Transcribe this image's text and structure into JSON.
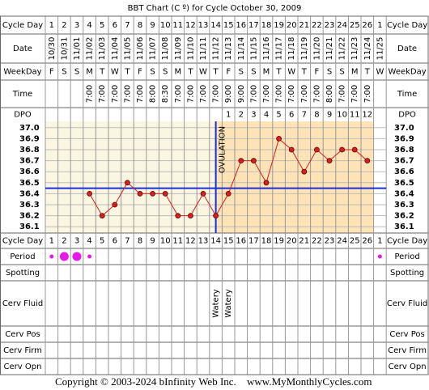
{
  "chart_data": {
    "type": "line",
    "title": "BBT Chart (C º) for Cycle October 30, 2009",
    "categories": [
      1,
      2,
      3,
      4,
      5,
      6,
      7,
      8,
      9,
      10,
      11,
      12,
      13,
      14,
      15,
      16,
      17,
      18,
      19,
      20,
      21,
      22,
      23,
      24,
      25,
      26,
      1
    ],
    "dates": [
      "10/30",
      "10/31",
      "11/01",
      "11/02",
      "11/03",
      "11/04",
      "11/05",
      "11/06",
      "11/07",
      "11/08",
      "11/09",
      "11/10",
      "11/11",
      "11/12",
      "11/13",
      "11/14",
      "11/15",
      "11/16",
      "11/17",
      "11/18",
      "11/19",
      "11/20",
      "11/21",
      "11/22",
      "11/23",
      "11/24",
      "11/25"
    ],
    "weekdays": [
      "F",
      "S",
      "S",
      "M",
      "T",
      "W",
      "T",
      "F",
      "S",
      "S",
      "M",
      "T",
      "W",
      "T",
      "F",
      "S",
      "S",
      "M",
      "T",
      "W",
      "T",
      "F",
      "S",
      "S",
      "M",
      "T",
      "W"
    ],
    "times": [
      null,
      null,
      null,
      "7:00",
      "7:00",
      "7:00",
      "7:00",
      "7:00",
      "8:00",
      "8:30",
      "7:00",
      "7:00",
      "7:00",
      "7:00",
      "9:00",
      "9:00",
      "7:00",
      "7:00",
      "7:00",
      "7:00",
      "7:00",
      "7:00",
      "8:00",
      "7:00",
      "7:00",
      "7:00",
      null
    ],
    "dpo": [
      null,
      null,
      null,
      null,
      null,
      null,
      null,
      null,
      null,
      null,
      null,
      null,
      null,
      null,
      1,
      2,
      3,
      4,
      5,
      6,
      7,
      8,
      9,
      10,
      11,
      12,
      null
    ],
    "values": [
      null,
      null,
      null,
      36.4,
      36.2,
      36.3,
      36.5,
      36.4,
      36.4,
      36.4,
      36.2,
      36.2,
      36.4,
      36.2,
      36.4,
      36.7,
      36.7,
      36.5,
      36.9,
      36.8,
      36.6,
      36.8,
      36.7,
      36.8,
      36.8,
      36.7,
      null
    ],
    "color": "#d42020",
    "ylim": [
      36.05,
      37.05
    ],
    "yticks": [
      {
        "value": 37,
        "label": "37.0"
      },
      36.9,
      36.8,
      36.7,
      36.6,
      36.5,
      36.4,
      36.3,
      36.2,
      36.1
    ],
    "coverline": 36.45,
    "ovulation_day": 14,
    "ovulation_label": "OVULATION",
    "period": [
      "light",
      "heavy",
      "heavy",
      "light",
      null,
      null,
      null,
      null,
      null,
      null,
      null,
      null,
      null,
      null,
      null,
      null,
      null,
      null,
      null,
      null,
      null,
      null,
      null,
      null,
      null,
      null,
      "light"
    ],
    "cerv_fluid": [
      null,
      null,
      null,
      null,
      null,
      null,
      null,
      null,
      null,
      null,
      null,
      null,
      null,
      "Watery",
      "Watery",
      null,
      null,
      null,
      null,
      null,
      null,
      null,
      null,
      null,
      null,
      null,
      null
    ],
    "row_labels": {
      "cycle_day": "Cycle Day",
      "date": "Date",
      "weekday": "WeekDay",
      "time": "Time",
      "dpo": "DPO",
      "period": "Period",
      "spotting": "Spotting",
      "cerv_fluid": "Cerv Fluid",
      "cerv_pos": "Cerv Pos",
      "cerv_firm": "Cerv Firm",
      "cerv_opn": "Cerv Opn"
    },
    "copyright": "Copyright © 2003-2024 bInfinity Web Inc.",
    "website": "www.MyMonthlyCycles.com"
  }
}
